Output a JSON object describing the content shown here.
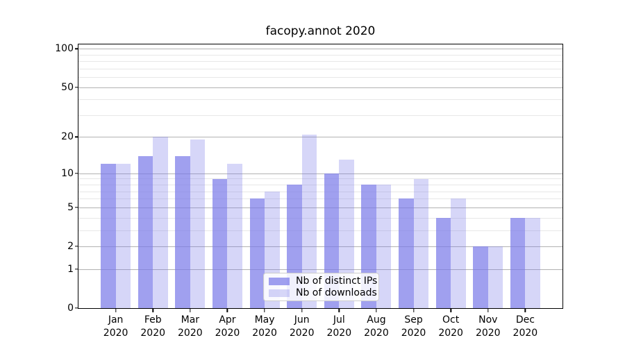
{
  "figure": {
    "title": "facopy.annot 2020"
  },
  "chart_data": {
    "type": "bar",
    "title": "facopy.annot 2020",
    "categories": [
      "Jan",
      "Feb",
      "Mar",
      "Apr",
      "May",
      "Jun",
      "Jul",
      "Aug",
      "Sep",
      "Oct",
      "Nov",
      "Dec"
    ],
    "year_label": "2020",
    "series": [
      {
        "name": "Nb of distinct IPs",
        "color": "rgba(120,120,232,0.7)",
        "values": [
          12,
          14,
          14,
          9,
          6,
          8,
          10,
          8,
          6,
          4,
          2,
          4
        ]
      },
      {
        "name": "Nb of downloads",
        "color": "rgba(120,120,232,0.3)",
        "values": [
          12,
          20,
          19,
          12,
          7,
          21,
          13,
          8,
          9,
          6,
          2,
          4
        ]
      }
    ],
    "yscale": "log1p",
    "y_axis": {
      "major_ticks": [
        0,
        1,
        2,
        5,
        10,
        20,
        50,
        100
      ],
      "minor_gridlines": [
        3,
        4,
        6,
        7,
        8,
        9,
        30,
        40,
        60,
        70,
        80,
        90
      ],
      "top_value": 108
    },
    "grid": "both",
    "legend": {
      "position": "lower center",
      "entries": [
        "Nb of distinct IPs",
        "Nb of downloads"
      ]
    },
    "colors": {
      "bar_dark": "rgba(120,120,232,0.7)",
      "bar_light": "rgba(120,120,232,0.3)",
      "grid_major": "#b2b2b2",
      "grid_minor": "#e7e7e7",
      "spine": "#000000",
      "text": "#000000",
      "legend_border": "#cccccc",
      "legend_bg": "rgba(255,255,255,0.85)"
    }
  }
}
